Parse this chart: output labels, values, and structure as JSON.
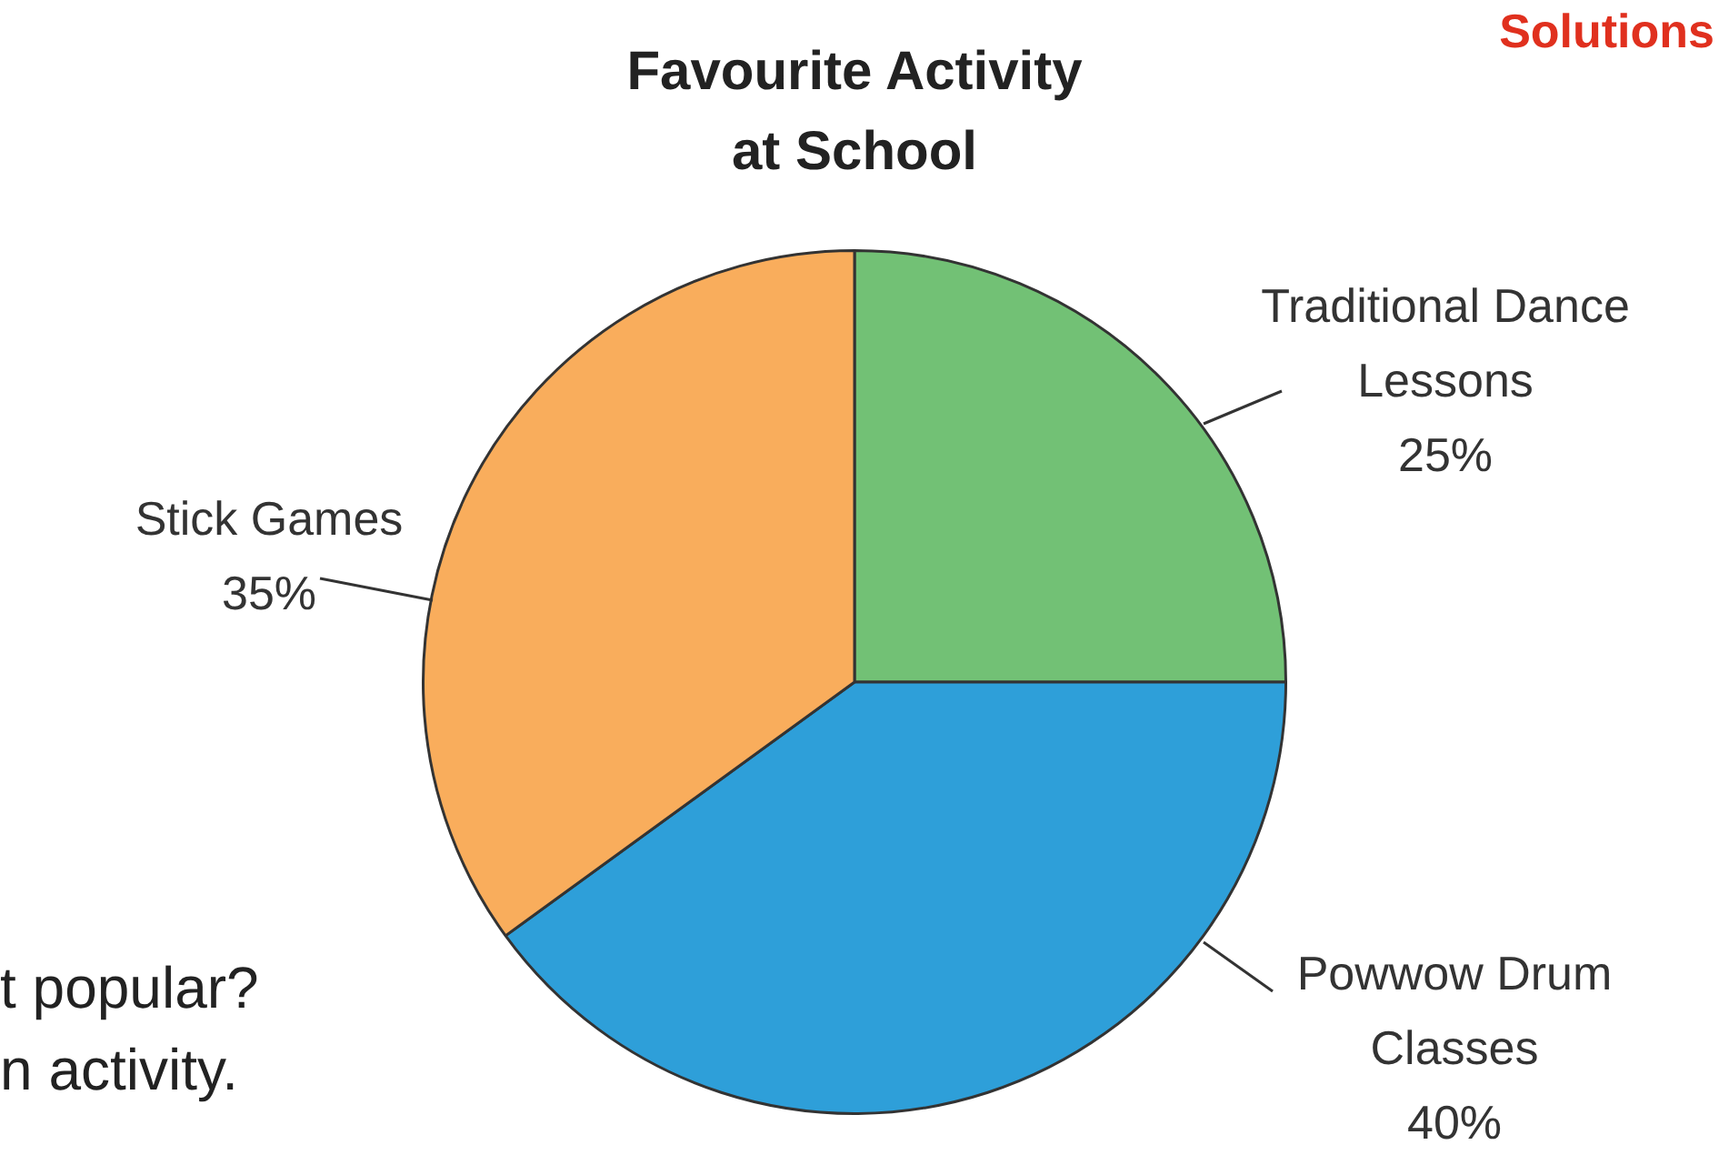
{
  "chart_data": {
    "type": "pie",
    "title": "Favourite Activity at School",
    "categories": [
      "Traditional Dance Lessons",
      "Powwow Drum Classes",
      "Stick Games"
    ],
    "values": [
      25,
      40,
      35
    ],
    "colors": [
      "#72c175",
      "#2e9fd9",
      "#f9ad5c"
    ],
    "value_labels": [
      "25%",
      "40%",
      "35%"
    ],
    "legend": false,
    "annotations": [
      "Solutions",
      "t popular?",
      "n activity."
    ]
  }
}
